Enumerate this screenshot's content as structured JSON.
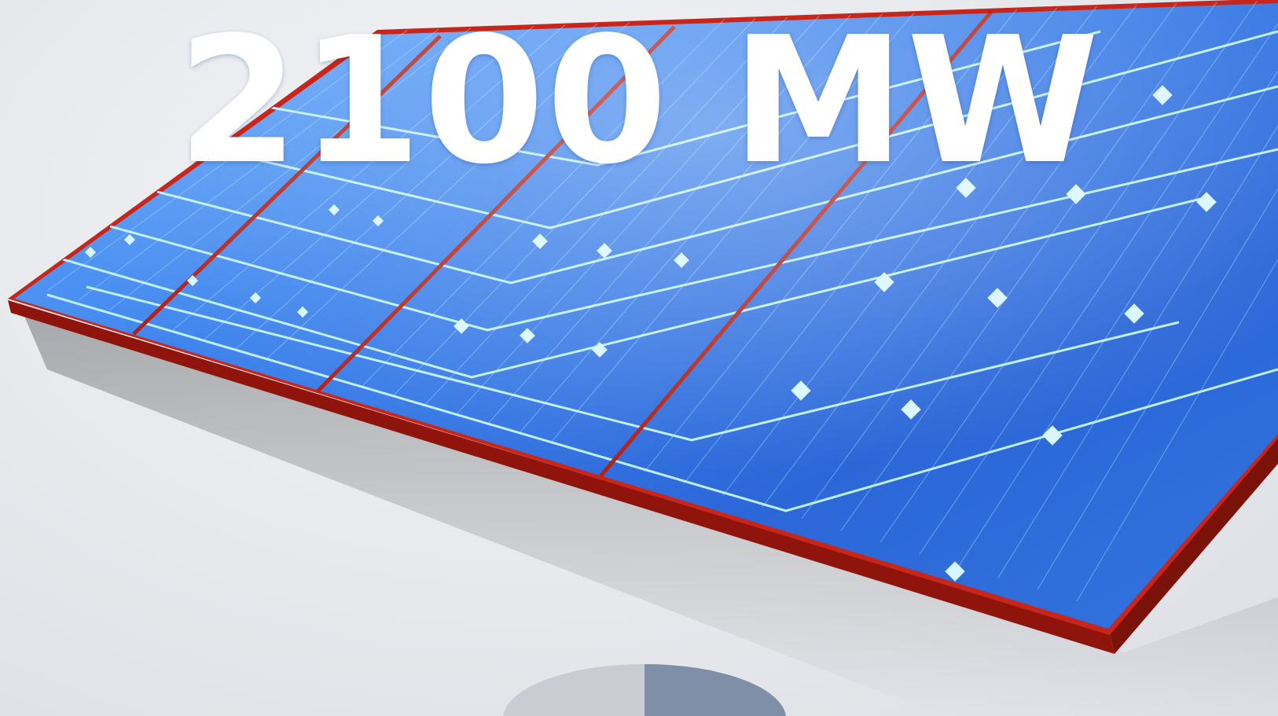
{
  "headline": {
    "text": "2100 MW"
  },
  "image": {
    "subject": "solar-panel-icon"
  },
  "colors": {
    "panel_blue": "#2d6fe0",
    "panel_light": "#6fb2ff",
    "frame_red": "#c8261a",
    "frame_dark": "#8f150c",
    "cell_highlight": "#bfefff",
    "background": "#e6e8ec",
    "text": "#ffffff"
  }
}
